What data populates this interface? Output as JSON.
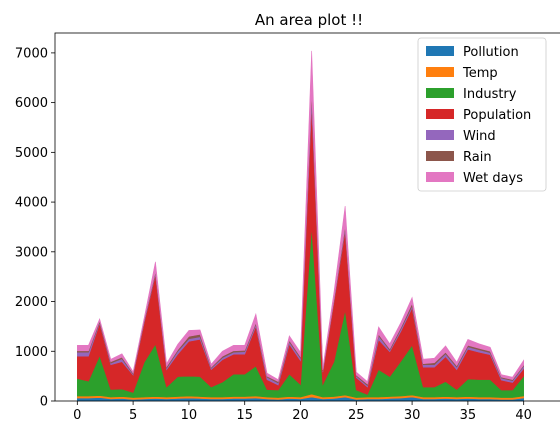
{
  "chart_data": {
    "type": "area",
    "stacked": true,
    "title": "An area plot !!",
    "xlabel": "",
    "ylabel": "",
    "xlim": [
      -2,
      42
    ],
    "ylim": [
      0,
      7400
    ],
    "xticks": [
      0,
      5,
      10,
      15,
      20,
      25,
      30,
      35,
      40
    ],
    "yticks": [
      0,
      1000,
      2000,
      3000,
      4000,
      5000,
      6000,
      7000
    ],
    "legend_position": "top-right",
    "x": [
      0,
      1,
      2,
      3,
      4,
      5,
      6,
      7,
      8,
      9,
      10,
      11,
      12,
      13,
      14,
      15,
      16,
      17,
      18,
      19,
      20,
      21,
      22,
      23,
      24,
      25,
      26,
      27,
      28,
      29,
      30,
      31,
      32,
      33,
      34,
      35,
      36,
      37,
      38,
      39,
      40
    ],
    "series": [
      {
        "name": "Pollution",
        "color": "#1f77b4",
        "values": [
          60,
          60,
          70,
          40,
          50,
          30,
          40,
          50,
          40,
          50,
          60,
          50,
          40,
          40,
          50,
          50,
          60,
          40,
          30,
          50,
          40,
          80,
          40,
          50,
          80,
          30,
          40,
          40,
          50,
          60,
          80,
          40,
          40,
          50,
          40,
          50,
          40,
          40,
          30,
          30,
          60
        ]
      },
      {
        "name": "Temp",
        "color": "#ff7f0e",
        "values": [
          40,
          40,
          40,
          40,
          40,
          40,
          40,
          40,
          40,
          40,
          40,
          40,
          40,
          40,
          40,
          40,
          40,
          40,
          40,
          40,
          40,
          60,
          40,
          40,
          40,
          40,
          40,
          40,
          40,
          40,
          40,
          40,
          40,
          40,
          40,
          40,
          40,
          40,
          40,
          40,
          40
        ]
      },
      {
        "name": "Industry",
        "color": "#2ca02c",
        "values": [
          350,
          300,
          800,
          150,
          150,
          100,
          700,
          1050,
          200,
          400,
          400,
          400,
          200,
          300,
          450,
          450,
          600,
          150,
          150,
          450,
          250,
          3350,
          250,
          700,
          1700,
          150,
          50,
          550,
          400,
          700,
          1000,
          200,
          200,
          300,
          150,
          350,
          350,
          350,
          150,
          150,
          400
        ]
      },
      {
        "name": "Population",
        "color": "#d62728",
        "values": [
          450,
          500,
          650,
          500,
          550,
          350,
          800,
          1400,
          350,
          450,
          700,
          750,
          350,
          450,
          400,
          400,
          800,
          200,
          100,
          600,
          480,
          2450,
          250,
          1200,
          1600,
          250,
          150,
          600,
          500,
          600,
          750,
          400,
          400,
          500,
          400,
          600,
          550,
          500,
          200,
          150,
          150
        ]
      },
      {
        "name": "Wind",
        "color": "#9467bd",
        "values": [
          80,
          80,
          20,
          30,
          60,
          20,
          30,
          30,
          30,
          60,
          50,
          50,
          30,
          40,
          40,
          50,
          40,
          50,
          40,
          50,
          50,
          150,
          20,
          20,
          50,
          30,
          30,
          80,
          30,
          50,
          40,
          50,
          50,
          60,
          50,
          50,
          50,
          40,
          40,
          40,
          50
        ]
      },
      {
        "name": "Rain",
        "color": "#8c564b",
        "values": [
          30,
          30,
          30,
          30,
          30,
          20,
          20,
          30,
          30,
          30,
          50,
          50,
          20,
          30,
          30,
          30,
          30,
          20,
          30,
          30,
          30,
          100,
          20,
          30,
          50,
          20,
          30,
          30,
          30,
          30,
          50,
          20,
          40,
          30,
          30,
          30,
          30,
          30,
          20,
          20,
          20
        ]
      },
      {
        "name": "Wet days",
        "color": "#e377c2",
        "values": [
          110,
          110,
          40,
          50,
          70,
          30,
          50,
          200,
          60,
          110,
          120,
          90,
          60,
          100,
          110,
          100,
          180,
          60,
          40,
          90,
          90,
          850,
          50,
          150,
          400,
          60,
          50,
          150,
          100,
          100,
          120,
          90,
          90,
          130,
          70,
          120,
          90,
          80,
          50,
          50,
          100
        ]
      }
    ]
  }
}
